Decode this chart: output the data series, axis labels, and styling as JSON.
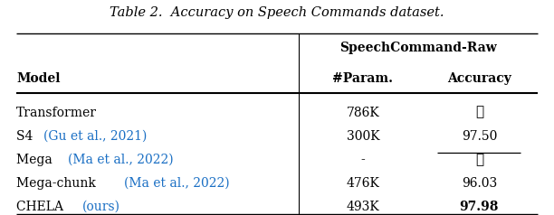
{
  "title": "Table 2.  Accuracy on Speech Commands dataset.",
  "rows": [
    [
      "Transformer",
      "786K",
      "✗",
      false,
      false
    ],
    [
      "S4 (Gu et al., 2021)",
      "300K",
      "97.50",
      true,
      false
    ],
    [
      "Mega (Ma et al., 2022)",
      "-",
      "✗",
      false,
      false
    ],
    [
      "Mega-chunk (Ma et al., 2022)",
      "476K",
      "96.03",
      false,
      false
    ],
    [
      "CHELA (ours)",
      "493K",
      "97.98",
      false,
      true
    ]
  ],
  "citation_color": "#1a6fc4",
  "text_color": "#000000",
  "bg_color": "#ffffff",
  "underline_row": 1,
  "bold_accuracy_row": 4
}
